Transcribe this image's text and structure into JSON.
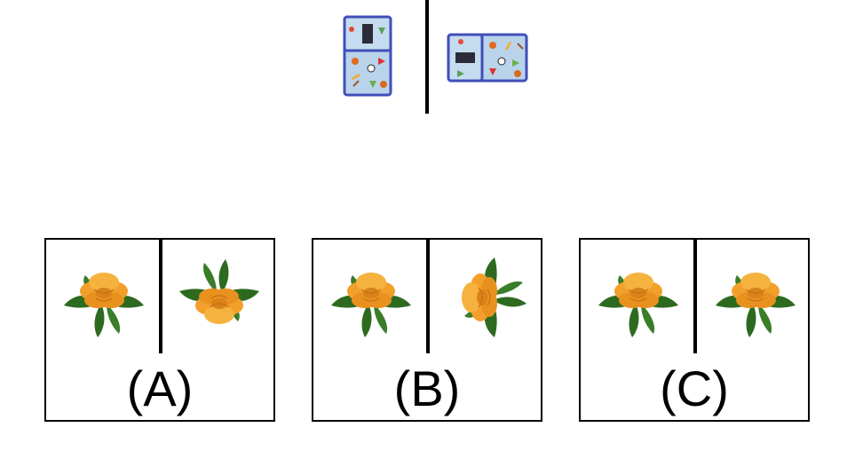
{
  "example": {
    "left_image": "lunch-bag-upright",
    "right_image": "lunch-bag-rotated-90",
    "bag_colors": {
      "fabric": "#b9d3ea",
      "trim": "#3f4fb8"
    }
  },
  "options": [
    {
      "label": "(A)",
      "left_image": "flower-upright",
      "right_image": "flower-rotated-180"
    },
    {
      "label": "(B)",
      "left_image": "flower-upright",
      "right_image": "flower-rotated-90"
    },
    {
      "label": "(C)",
      "left_image": "flower-upright",
      "right_image": "flower-upright"
    }
  ],
  "colors": {
    "petal": "#f2a02b",
    "petal_shade": "#d9821a",
    "leaf": "#2d6a1f",
    "line": "#000000"
  }
}
